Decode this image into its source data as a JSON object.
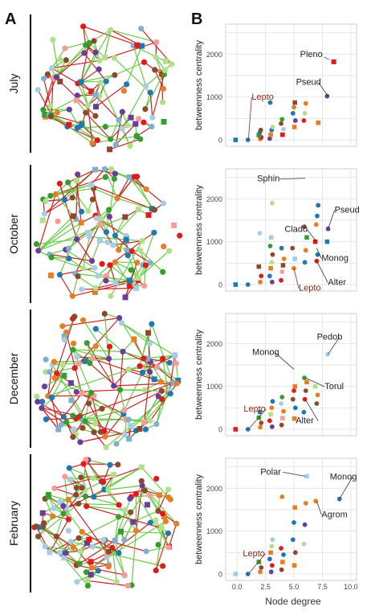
{
  "figure": {
    "panel_a_label": "A",
    "panel_b_label": "B",
    "months": [
      "July",
      "October",
      "December",
      "February"
    ],
    "common_xlabel": "Node degree"
  },
  "palette": [
    "#1f78b4",
    "#a6cee3",
    "#e67e22",
    "#8b4a2b",
    "#e31a1c",
    "#6a3d9a",
    "#b2df8a",
    "#33a02c",
    "#fb9a99",
    "#7fb0cf"
  ],
  "edge_colors": [
    "#66cc44",
    "#cc2222"
  ],
  "chart_data": [
    {
      "type": "scatter",
      "title": "",
      "xlabel": "",
      "ylabel": "betweenness centrality",
      "xlim": [
        -1,
        10.5
      ],
      "ylim": [
        -150,
        2700
      ],
      "xticks": [],
      "yticks": [
        0,
        1000,
        2000
      ],
      "grid": true,
      "highlight": {
        "name": "Pleno",
        "x": 8.5,
        "y": 1820,
        "color": "#e31a1c",
        "marker": "square",
        "label": "Pleno"
      },
      "points": [
        {
          "x": 0,
          "y": 0,
          "color": "#1f78b4"
        },
        {
          "x": 1,
          "y": 0,
          "color": "#1f78b4"
        },
        {
          "x": 2,
          "y": 20,
          "color": "#e67e22"
        },
        {
          "x": 2,
          "y": 60,
          "color": "#e31a1c"
        },
        {
          "x": 2,
          "y": 110,
          "color": "#33a02c"
        },
        {
          "x": 2,
          "y": 170,
          "color": "#1f78b4"
        },
        {
          "x": 2,
          "y": 230,
          "color": "#8b4a2b"
        },
        {
          "x": 3,
          "y": 30,
          "color": "#6a3d9a"
        },
        {
          "x": 3,
          "y": 120,
          "color": "#e67e22"
        },
        {
          "x": 3,
          "y": 230,
          "color": "#1f78b4"
        },
        {
          "x": 3,
          "y": 300,
          "color": "#b2df8a"
        },
        {
          "x": 3,
          "y": 870,
          "color": "#1f78b4"
        },
        {
          "x": 4,
          "y": 120,
          "color": "#e31a1c"
        },
        {
          "x": 4,
          "y": 250,
          "color": "#a6cee3"
        },
        {
          "x": 4,
          "y": 380,
          "color": "#8b4a2b"
        },
        {
          "x": 4,
          "y": 480,
          "color": "#33a02c"
        },
        {
          "x": 5,
          "y": 300,
          "color": "#e67e22"
        },
        {
          "x": 5,
          "y": 450,
          "color": "#6a3d9a"
        },
        {
          "x": 5,
          "y": 620,
          "color": "#1f78b4"
        },
        {
          "x": 5,
          "y": 760,
          "color": "#e67e22"
        },
        {
          "x": 5,
          "y": 870,
          "color": "#8b4a2b"
        },
        {
          "x": 6,
          "y": 450,
          "color": "#e31a1c"
        },
        {
          "x": 6,
          "y": 620,
          "color": "#b2df8a"
        },
        {
          "x": 6,
          "y": 850,
          "color": "#e67e22"
        },
        {
          "x": 7,
          "y": 400,
          "color": "#e67e22"
        },
        {
          "x": 8,
          "y": 1020,
          "color": "#6a3d9a"
        }
      ],
      "annotations": [
        {
          "label": "Pseud",
          "x": 8,
          "y": 1020,
          "color": "#222222"
        },
        {
          "label": "Lepto",
          "x": 1,
          "y": 0,
          "color": "#8b2b1a"
        }
      ]
    },
    {
      "type": "scatter",
      "title": "",
      "xlabel": "",
      "ylabel": "betweenness centrality",
      "xlim": [
        -1,
        10.5
      ],
      "ylim": [
        -150,
        2700
      ],
      "xticks": [],
      "yticks": [
        0,
        1000,
        2000
      ],
      "grid": true,
      "points": [
        {
          "x": 0,
          "y": 0,
          "color": "#1f78b4"
        },
        {
          "x": 1,
          "y": 0,
          "color": "#1f78b4"
        },
        {
          "x": 2,
          "y": 60,
          "color": "#e67e22"
        },
        {
          "x": 2,
          "y": 200,
          "color": "#e31a1c"
        },
        {
          "x": 2,
          "y": 420,
          "color": "#8b4a2b"
        },
        {
          "x": 2,
          "y": 1200,
          "color": "#a6cee3"
        },
        {
          "x": 3,
          "y": 60,
          "color": "#6a3d9a"
        },
        {
          "x": 3,
          "y": 200,
          "color": "#1f78b4"
        },
        {
          "x": 3,
          "y": 380,
          "color": "#e67e22"
        },
        {
          "x": 3,
          "y": 520,
          "color": "#b2df8a"
        },
        {
          "x": 3,
          "y": 700,
          "color": "#8b4a2b"
        },
        {
          "x": 3,
          "y": 900,
          "color": "#33a02c"
        },
        {
          "x": 3,
          "y": 1100,
          "color": "#a6cee3"
        },
        {
          "x": 3,
          "y": 1900,
          "color": "#b2df8a"
        },
        {
          "x": 4,
          "y": 100,
          "color": "#e31a1c"
        },
        {
          "x": 4,
          "y": 300,
          "color": "#fb9a99"
        },
        {
          "x": 4,
          "y": 450,
          "color": "#8b4a2b"
        },
        {
          "x": 4,
          "y": 600,
          "color": "#e67e22"
        },
        {
          "x": 4,
          "y": 850,
          "color": "#1f78b4"
        },
        {
          "x": 5,
          "y": 380,
          "color": "#e67e22"
        },
        {
          "x": 5,
          "y": 600,
          "color": "#a6cee3"
        },
        {
          "x": 5,
          "y": 850,
          "color": "#8b4a2b"
        },
        {
          "x": 6,
          "y": 520,
          "color": "#1f78b4"
        },
        {
          "x": 6,
          "y": 800,
          "color": "#e67e22"
        },
        {
          "x": 6,
          "y": 1100,
          "color": "#33a02c"
        },
        {
          "x": 6,
          "y": 1350,
          "color": "#8b4a2b"
        },
        {
          "x": 7,
          "y": 550,
          "color": "#e31a1c"
        },
        {
          "x": 7,
          "y": 700,
          "color": "#1f78b4"
        },
        {
          "x": 7,
          "y": 1000,
          "color": "#e31a1c"
        },
        {
          "x": 7,
          "y": 1400,
          "color": "#e67e22"
        },
        {
          "x": 7,
          "y": 1600,
          "color": "#1f78b4"
        },
        {
          "x": 7,
          "y": 1850,
          "color": "#1f78b4"
        },
        {
          "x": 8,
          "y": 1000,
          "color": "#1f78b4"
        },
        {
          "x": 8,
          "y": 1300,
          "color": "#6a3d9a"
        }
      ],
      "annotations": [
        {
          "label": "Sphin",
          "x": 6,
          "y": 2480,
          "color": "#222222"
        },
        {
          "label": "Pseud",
          "x": 8,
          "y": 1300,
          "color": "#222222"
        },
        {
          "label": "Clado",
          "x": 7,
          "y": 1000,
          "color": "#222222"
        },
        {
          "label": "Monog",
          "x": 7,
          "y": 850,
          "color": "#222222"
        },
        {
          "label": "Alter",
          "x": 7,
          "y": 550,
          "color": "#222222"
        },
        {
          "label": "Lepto",
          "x": 5,
          "y": 380,
          "color": "#8b2b1a"
        }
      ]
    },
    {
      "type": "scatter",
      "title": "",
      "xlabel": "",
      "ylabel": "betweenness centrality",
      "xlim": [
        -1,
        10.5
      ],
      "ylim": [
        -150,
        2700
      ],
      "xticks": [],
      "yticks": [
        0,
        1000,
        2000
      ],
      "grid": true,
      "points": [
        {
          "x": 0,
          "y": 0,
          "color": "#e31a1c"
        },
        {
          "x": 1,
          "y": 0,
          "color": "#1f78b4"
        },
        {
          "x": 2,
          "y": 50,
          "color": "#e67e22"
        },
        {
          "x": 2,
          "y": 150,
          "color": "#8b4a2b"
        },
        {
          "x": 2,
          "y": 270,
          "color": "#33a02c"
        },
        {
          "x": 2,
          "y": 400,
          "color": "#1f78b4"
        },
        {
          "x": 3,
          "y": 60,
          "color": "#6a3d9a"
        },
        {
          "x": 3,
          "y": 200,
          "color": "#e31a1c"
        },
        {
          "x": 3,
          "y": 350,
          "color": "#b2df8a"
        },
        {
          "x": 3,
          "y": 500,
          "color": "#e67e22"
        },
        {
          "x": 3,
          "y": 650,
          "color": "#1f78b4"
        },
        {
          "x": 4,
          "y": 100,
          "color": "#8b4a2b"
        },
        {
          "x": 4,
          "y": 260,
          "color": "#fb9a99"
        },
        {
          "x": 4,
          "y": 420,
          "color": "#e67e22"
        },
        {
          "x": 4,
          "y": 600,
          "color": "#a6cee3"
        },
        {
          "x": 4,
          "y": 750,
          "color": "#33a02c"
        },
        {
          "x": 5,
          "y": 250,
          "color": "#e67e22"
        },
        {
          "x": 5,
          "y": 500,
          "color": "#1f78b4"
        },
        {
          "x": 5,
          "y": 700,
          "color": "#8b4a2b"
        },
        {
          "x": 5,
          "y": 900,
          "color": "#e31a1c"
        },
        {
          "x": 5,
          "y": 1000,
          "color": "#e67e22"
        },
        {
          "x": 6,
          "y": 400,
          "color": "#1f78b4"
        },
        {
          "x": 6,
          "y": 700,
          "color": "#e31a1c"
        },
        {
          "x": 6,
          "y": 900,
          "color": "#8b4a2b"
        },
        {
          "x": 6,
          "y": 1100,
          "color": "#e67e22"
        },
        {
          "x": 6,
          "y": 1200,
          "color": "#33a02c"
        },
        {
          "x": 7,
          "y": 600,
          "color": "#8b4a2b"
        },
        {
          "x": 7,
          "y": 800,
          "color": "#e67e22"
        },
        {
          "x": 7,
          "y": 1000,
          "color": "#b2df8a"
        },
        {
          "x": 8,
          "y": 1750,
          "color": "#a6cee3"
        }
      ],
      "annotations": [
        {
          "label": "Pedob",
          "x": 8,
          "y": 1750,
          "color": "#222222"
        },
        {
          "label": "Monog",
          "x": 5,
          "y": 1400,
          "color": "#222222"
        },
        {
          "label": "Torul",
          "x": 6,
          "y": 1200,
          "color": "#222222"
        },
        {
          "label": "Alter",
          "x": 6,
          "y": 700,
          "color": "#222222"
        },
        {
          "label": "Lepto",
          "x": 1,
          "y": 0,
          "color": "#8b2b1a"
        }
      ]
    },
    {
      "type": "scatter",
      "title": "",
      "xlabel": "Node degree",
      "ylabel": "betweenness centrality",
      "xlim": [
        -1,
        10.5
      ],
      "ylim": [
        -150,
        2700
      ],
      "xticks": [
        0,
        2.5,
        5,
        7.5,
        10
      ],
      "xtick_labels": [
        "0.0",
        "2.5",
        "5.0",
        "7.5",
        "10.0"
      ],
      "yticks": [
        0,
        1000,
        2000
      ],
      "grid": true,
      "points": [
        {
          "x": 0,
          "y": 0,
          "color": "#a6cee3"
        },
        {
          "x": 1,
          "y": 0,
          "color": "#1f78b4"
        },
        {
          "x": 2,
          "y": 50,
          "color": "#e67e22"
        },
        {
          "x": 2,
          "y": 150,
          "color": "#8b4a2b"
        },
        {
          "x": 2,
          "y": 280,
          "color": "#33a02c"
        },
        {
          "x": 3,
          "y": 50,
          "color": "#6a3d9a"
        },
        {
          "x": 3,
          "y": 200,
          "color": "#e31a1c"
        },
        {
          "x": 3,
          "y": 350,
          "color": "#1f78b4"
        },
        {
          "x": 3,
          "y": 500,
          "color": "#e67e22"
        },
        {
          "x": 3,
          "y": 650,
          "color": "#b2df8a"
        },
        {
          "x": 3,
          "y": 800,
          "color": "#a6cee3"
        },
        {
          "x": 4,
          "y": 100,
          "color": "#8b4a2b"
        },
        {
          "x": 4,
          "y": 280,
          "color": "#e67e22"
        },
        {
          "x": 4,
          "y": 450,
          "color": "#1f78b4"
        },
        {
          "x": 4,
          "y": 600,
          "color": "#e31a1c"
        },
        {
          "x": 4,
          "y": 1800,
          "color": "#e67e22"
        },
        {
          "x": 5,
          "y": 200,
          "color": "#e67e22"
        },
        {
          "x": 5,
          "y": 500,
          "color": "#8b4a2b"
        },
        {
          "x": 5,
          "y": 800,
          "color": "#1f78b4"
        },
        {
          "x": 5,
          "y": 1200,
          "color": "#1f78b4"
        },
        {
          "x": 5,
          "y": 1550,
          "color": "#e67e22"
        },
        {
          "x": 6,
          "y": 700,
          "color": "#b2df8a"
        },
        {
          "x": 6,
          "y": 1150,
          "color": "#6a3d9a"
        },
        {
          "x": 6,
          "y": 1650,
          "color": "#e67e22"
        },
        {
          "x": 6,
          "y": 2280,
          "color": "#a6cee3"
        },
        {
          "x": 7,
          "y": 1700,
          "color": "#e67e22"
        },
        {
          "x": 9,
          "y": 1750,
          "color": "#1f78b4"
        }
      ],
      "annotations": [
        {
          "label": "Polar",
          "x": 6,
          "y": 2280,
          "color": "#222222"
        },
        {
          "label": "Monog",
          "x": 9,
          "y": 1750,
          "color": "#222222"
        },
        {
          "label": "Agrom",
          "x": 7,
          "y": 1700,
          "color": "#222222"
        },
        {
          "label": "Lepto",
          "x": 1,
          "y": 0,
          "color": "#8b2b1a"
        }
      ]
    }
  ]
}
